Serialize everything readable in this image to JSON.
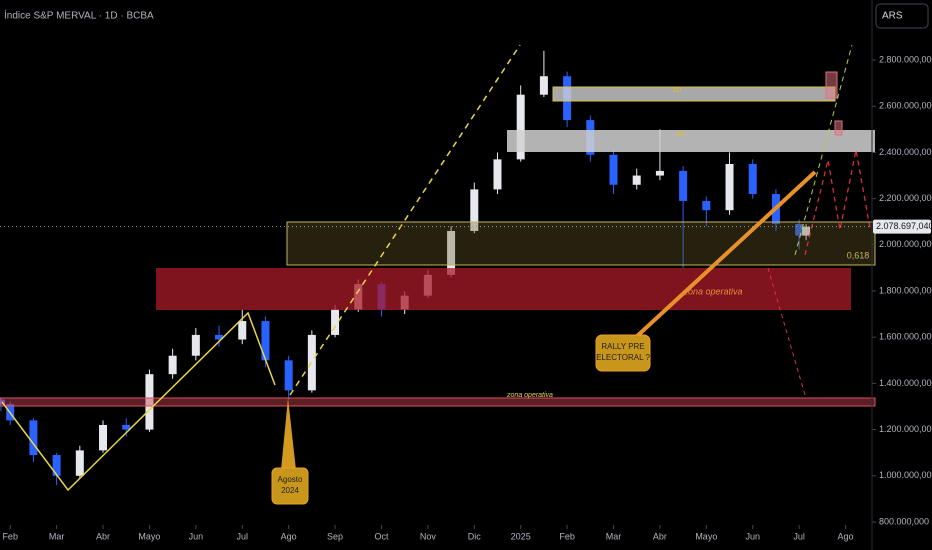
{
  "chart_data": {
    "type": "candlestick",
    "title": "Índice S&P MERVAL · 1D · BCBA",
    "currency": "ARS",
    "x": [
      -0.2,
      0,
      0.5,
      1,
      1.5,
      2,
      2.5,
      3,
      3.5,
      4,
      4.5,
      5,
      5.5,
      6,
      6.5,
      7,
      7.5,
      8,
      8.5,
      9,
      9.5,
      10,
      10.5,
      11,
      11.5,
      12,
      12.5,
      13,
      13.5,
      14,
      14.5,
      15,
      15.5,
      16,
      16.5,
      17,
      17.15
    ],
    "open": [
      1330000,
      1310000,
      1240000,
      1090000,
      1000000,
      1110000,
      1220000,
      1200000,
      1440000,
      1520000,
      1610000,
      1590000,
      1670000,
      1500000,
      1370000,
      1610000,
      1720000,
      1830000,
      1720000,
      1780000,
      1870000,
      2060000,
      2240000,
      2370000,
      2650000,
      2730000,
      2540000,
      2390000,
      2260000,
      2300000,
      2320000,
      2190000,
      2150000,
      2350000,
      2220000,
      2090000,
      2040000
    ],
    "high": [
      1340000,
      1320000,
      1250000,
      1100000,
      1130000,
      1240000,
      1250000,
      1460000,
      1550000,
      1640000,
      1650000,
      1720000,
      1690000,
      1520000,
      1630000,
      1740000,
      1850000,
      1840000,
      1800000,
      1890000,
      2080000,
      2270000,
      2400000,
      2690000,
      2840000,
      2750000,
      2560000,
      2410000,
      2330000,
      2500000,
      2340000,
      2210000,
      2400000,
      2370000,
      2240000,
      2110000,
      2090000
    ],
    "low": [
      1280000,
      1220000,
      1060000,
      960000,
      990000,
      1100000,
      1170000,
      1190000,
      1420000,
      1500000,
      1560000,
      1570000,
      1470000,
      1330000,
      1360000,
      1600000,
      1710000,
      1690000,
      1700000,
      1770000,
      1860000,
      2050000,
      2220000,
      2360000,
      2640000,
      2510000,
      2360000,
      2220000,
      2240000,
      2280000,
      1900000,
      2080000,
      2130000,
      2200000,
      2060000,
      1980000,
      2020000
    ],
    "close": [
      1310000,
      1240000,
      1090000,
      1000000,
      1110000,
      1220000,
      1200000,
      1440000,
      1520000,
      1610000,
      1590000,
      1670000,
      1500000,
      1370000,
      1610000,
      1720000,
      1830000,
      1720000,
      1780000,
      1870000,
      2060000,
      2240000,
      2370000,
      2650000,
      2730000,
      2540000,
      2390000,
      2260000,
      2300000,
      2320000,
      2190000,
      2150000,
      2350000,
      2220000,
      2090000,
      2040000,
      2078697.04
    ],
    "up_color": "#e6e8ee",
    "down_color": "#2962ff",
    "last_price": {
      "value": 2078697.04,
      "label": "2.078.697,040"
    },
    "xlim": [
      -0.22,
      18.57
    ],
    "xticks": [
      {
        "value": 0,
        "label": "Feb"
      },
      {
        "value": 1,
        "label": "Mar"
      },
      {
        "value": 2,
        "label": "Abr"
      },
      {
        "value": 3,
        "label": "Mayo"
      },
      {
        "value": 4,
        "label": "Jun"
      },
      {
        "value": 5,
        "label": "Jul"
      },
      {
        "value": 6,
        "label": "Ago"
      },
      {
        "value": 7,
        "label": "Sep"
      },
      {
        "value": 8,
        "label": "Oct"
      },
      {
        "value": 9,
        "label": "Nov"
      },
      {
        "value": 10,
        "label": "Dic"
      },
      {
        "value": 11,
        "label": "2025"
      },
      {
        "value": 12,
        "label": "Feb"
      },
      {
        "value": 13,
        "label": "Mar"
      },
      {
        "value": 14,
        "label": "Abr"
      },
      {
        "value": 15,
        "label": "Mayo"
      },
      {
        "value": 16,
        "label": "Jun"
      },
      {
        "value": 17,
        "label": "Jul"
      },
      {
        "value": 18,
        "label": "Ago"
      }
    ],
    "ylim": [
      787000,
      3060000
    ],
    "yticks": [
      {
        "value": 800000,
        "label": "800.000,000"
      },
      {
        "value": 1000000,
        "label": "1.000.000,000"
      },
      {
        "value": 1200000,
        "label": "1.200.000,000"
      },
      {
        "value": 1400000,
        "label": "1.400.000,000"
      },
      {
        "value": 1600000,
        "label": "1.600.000,000"
      },
      {
        "value": 1800000,
        "label": "1.800.000,000"
      },
      {
        "value": 2000000,
        "label": "2.000.000,000"
      },
      {
        "value": 2200000,
        "label": "2.200.000,000"
      },
      {
        "value": 2400000,
        "label": "2.400.000,000"
      },
      {
        "value": 2600000,
        "label": "2.600.000,000"
      },
      {
        "value": 2800000,
        "label": "2.800.000,000"
      }
    ],
    "annotations": {
      "zone_top": "zo",
      "zone_mid": "zo",
      "zona_operativa": "zona operativa",
      "zona_operativa_low": "zona operativa",
      "fib": "0,618",
      "agosto": [
        "Agosto",
        "2024"
      ],
      "rally": [
        "RALLY PRE",
        "ELECTORAL ?"
      ]
    }
  }
}
